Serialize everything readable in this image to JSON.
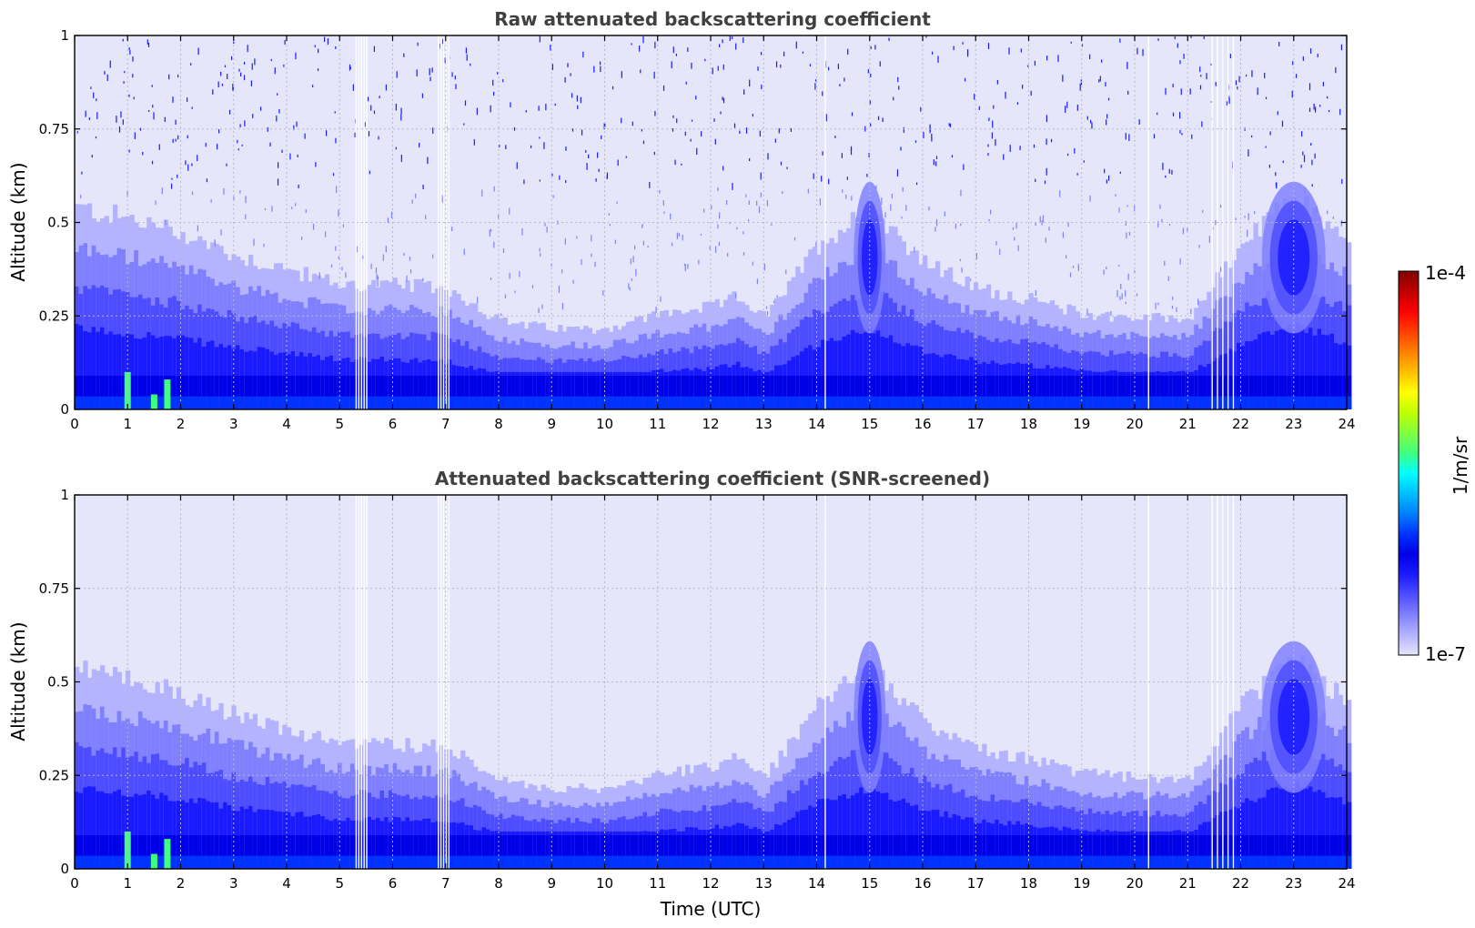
{
  "chart_data": [
    {
      "type": "heatmap",
      "title": "Raw attenuated backscattering coefficient",
      "xlabel": "",
      "ylabel": "Altitude (km)",
      "xlim": [
        0,
        24
      ],
      "ylim": [
        0,
        1
      ],
      "xticks": [
        "0",
        "1",
        "2",
        "3",
        "4",
        "5",
        "6",
        "7",
        "8",
        "9",
        "10",
        "11",
        "12",
        "13",
        "14",
        "15",
        "16",
        "17",
        "18",
        "19",
        "20",
        "21",
        "22",
        "23",
        "24"
      ],
      "yticks": [
        "0",
        "0.25",
        "0.5",
        "0.75",
        "1"
      ],
      "grid": true,
      "data_gaps_utc": [
        5.3,
        5.35,
        5.4,
        5.45,
        5.5,
        6.85,
        6.9,
        6.95,
        7.0,
        7.05,
        14.15,
        20.25,
        21.45,
        21.55,
        21.65,
        21.75,
        21.85
      ],
      "layers": [
        {
          "name": "surface layer",
          "top_km": 0.09,
          "level": "high"
        },
        {
          "name": "boundary layer top",
          "x": [
            0,
            1,
            2,
            3,
            4,
            5,
            6,
            7,
            8,
            9,
            10,
            11,
            12,
            12.5,
            13,
            14,
            15,
            16,
            17,
            18,
            19,
            20,
            21,
            22,
            23,
            24
          ],
          "top_km": [
            0.55,
            0.52,
            0.48,
            0.42,
            0.38,
            0.34,
            0.34,
            0.33,
            0.24,
            0.22,
            0.22,
            0.26,
            0.28,
            0.31,
            0.25,
            0.45,
            0.55,
            0.4,
            0.33,
            0.3,
            0.26,
            0.25,
            0.25,
            0.45,
            0.58,
            0.45
          ]
        },
        {
          "name": "residual layer feature",
          "x_center": 15,
          "top_km": 0.58,
          "level": "medium"
        },
        {
          "name": "evening layer feature",
          "x_center": 23,
          "top_km": 0.58,
          "level": "medium"
        }
      ],
      "noise_above_km": 0.6
    },
    {
      "type": "heatmap",
      "title": "Attenuated backscattering coefficient (SNR-screened)",
      "xlabel": "Time (UTC)",
      "ylabel": "Altitude (km)",
      "xlim": [
        0,
        24
      ],
      "ylim": [
        0,
        1
      ],
      "xticks": [
        "0",
        "1",
        "2",
        "3",
        "4",
        "5",
        "6",
        "7",
        "8",
        "9",
        "10",
        "11",
        "12",
        "13",
        "14",
        "15",
        "16",
        "17",
        "18",
        "19",
        "20",
        "21",
        "22",
        "23",
        "24"
      ],
      "yticks": [
        "0",
        "0.25",
        "0.5",
        "0.75",
        "1"
      ],
      "grid": true,
      "data_gaps_utc": [
        5.3,
        5.35,
        5.4,
        5.45,
        5.5,
        6.85,
        6.9,
        6.95,
        7.0,
        7.05,
        14.15,
        20.25,
        21.45,
        21.55,
        21.65,
        21.75,
        21.85
      ],
      "noise_above_km": null
    }
  ],
  "colorbar": {
    "label": "1/m/sr",
    "max_label": "1e-4",
    "min_label": "1e-7",
    "colormap": [
      "#e6e6fa",
      "#b3b3ff",
      "#8080ff",
      "#4d4dff",
      "#1a1aff",
      "#0000e6",
      "#0033ff",
      "#0080ff",
      "#00bfff",
      "#00ffff",
      "#40ff80",
      "#80ff40",
      "#c0ff00",
      "#ffff00",
      "#ffc000",
      "#ff8000",
      "#ff4000",
      "#ff0000",
      "#c00000",
      "#800000"
    ]
  }
}
